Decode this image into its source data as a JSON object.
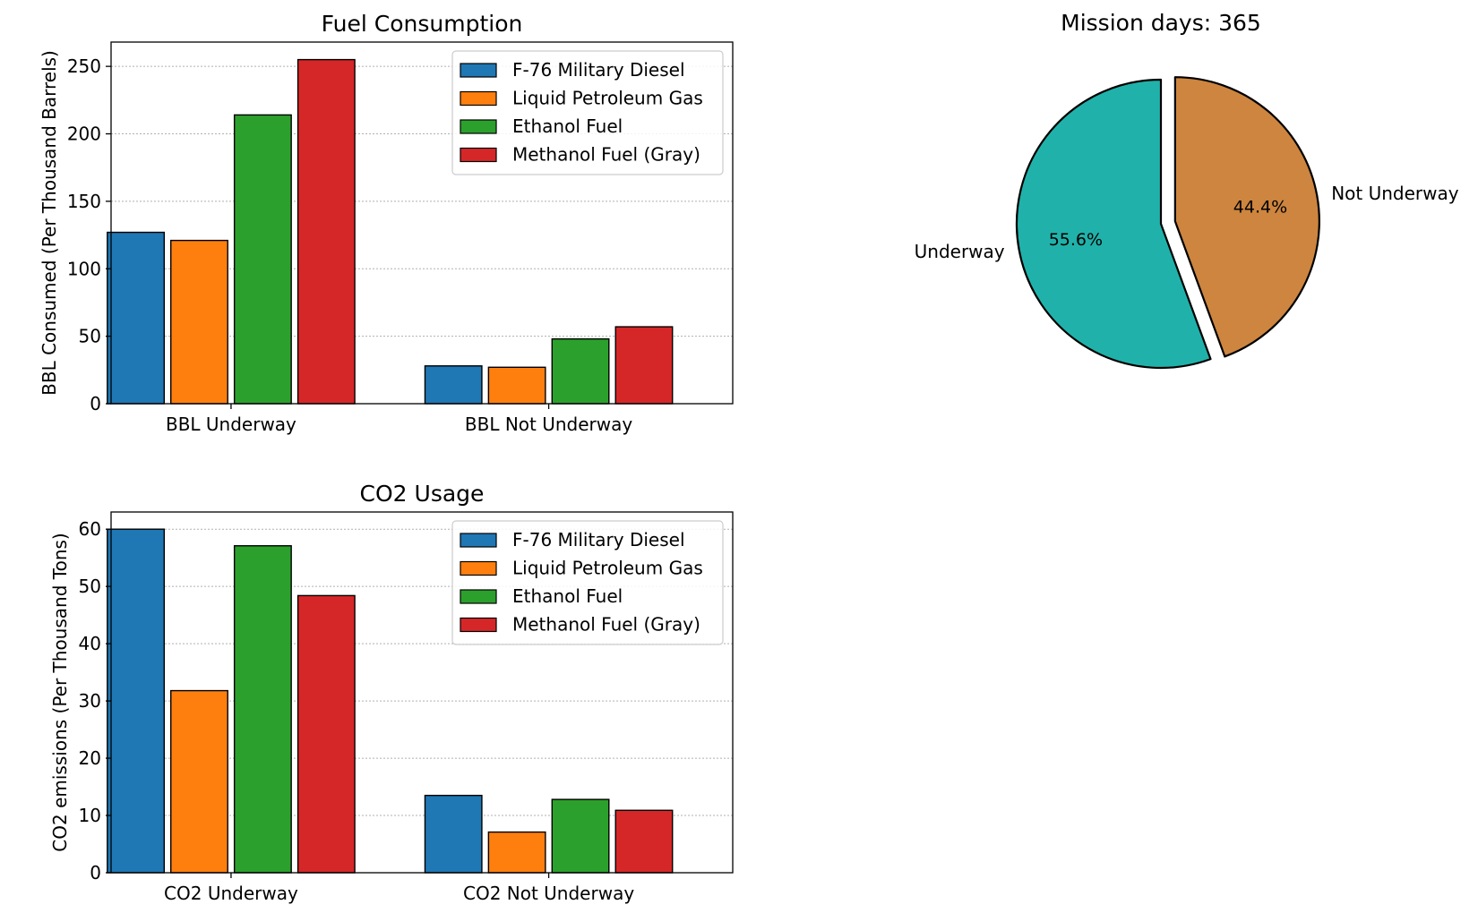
{
  "chart_data": [
    {
      "id": "fuel",
      "type": "bar",
      "title": "Fuel Consumption",
      "xlabel": "",
      "ylabel": "BBL Consumed (Per Thousand Barrels)",
      "categories": [
        "BBL Underway",
        "BBL Not Underway"
      ],
      "ylim": [
        0,
        268
      ],
      "yticks": [
        0,
        50,
        100,
        150,
        200,
        250
      ],
      "grid": "y",
      "legend_position": "upper-right",
      "series": [
        {
          "name": "F-76 Military Diesel",
          "color": "#1f77b4",
          "values": [
            127,
            28
          ]
        },
        {
          "name": "Liquid Petroleum Gas",
          "color": "#ff7f0e",
          "values": [
            121,
            27
          ]
        },
        {
          "name": "Ethanol Fuel",
          "color": "#2ca02c",
          "values": [
            214,
            48
          ]
        },
        {
          "name": "Methanol Fuel (Gray)",
          "color": "#d62728",
          "values": [
            255,
            57
          ]
        }
      ]
    },
    {
      "id": "co2",
      "type": "bar",
      "title": "CO2 Usage",
      "xlabel": "",
      "ylabel": "CO2 emissions (Per Thousand Tons)",
      "categories": [
        "CO2 Underway",
        "CO2 Not Underway"
      ],
      "ylim": [
        0,
        63
      ],
      "yticks": [
        0,
        10,
        20,
        30,
        40,
        50,
        60
      ],
      "grid": "y",
      "legend_position": "upper-right",
      "series": [
        {
          "name": "F-76 Military Diesel",
          "color": "#1f77b4",
          "values": [
            60,
            13.5
          ]
        },
        {
          "name": "Liquid Petroleum Gas",
          "color": "#ff7f0e",
          "values": [
            31.8,
            7.1
          ]
        },
        {
          "name": "Ethanol Fuel",
          "color": "#2ca02c",
          "values": [
            57.1,
            12.8
          ]
        },
        {
          "name": "Methanol Fuel (Gray)",
          "color": "#d62728",
          "values": [
            48.4,
            10.9
          ]
        }
      ]
    },
    {
      "id": "mission",
      "type": "pie",
      "title": "Mission days: 365",
      "slices": [
        {
          "label": "Underway",
          "value": 55.6,
          "pct_label": "55.6%",
          "color": "#20b2aa"
        },
        {
          "label": "Not Underway",
          "value": 44.4,
          "pct_label": "44.4%",
          "color": "#cd853f"
        }
      ]
    }
  ]
}
